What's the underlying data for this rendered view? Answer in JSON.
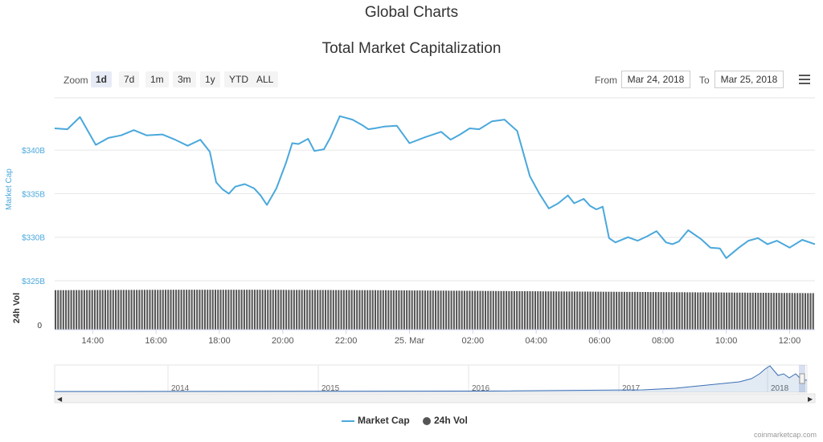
{
  "page": {
    "heading": "Global Charts",
    "chart_title": "Total Market Capitalization",
    "credit": "coinmarketcap.com"
  },
  "toolbar": {
    "zoom_label": "Zoom",
    "zoom_buttons": [
      "1d",
      "7d",
      "1m",
      "3m",
      "1y",
      "YTD",
      "ALL"
    ],
    "active_zoom": "1d",
    "from_label": "From",
    "from_value": "Mar 24, 2018",
    "to_label": "To",
    "to_value": "Mar 25, 2018",
    "menu_icon": "hamburger-menu-icon"
  },
  "legend": {
    "market_cap": "Market Cap",
    "volume": "24h Vol"
  },
  "colors": {
    "market_cap": "#4aa8dc",
    "volume": "#555555",
    "navigator_line": "#3a6fb5",
    "axis_text": "#4aa8dc"
  },
  "chart_data": {
    "type": "line",
    "title": "Total Market Capitalization",
    "x_tick_labels": [
      "14:00",
      "16:00",
      "18:00",
      "20:00",
      "22:00",
      "25. Mar",
      "02:00",
      "04:00",
      "06:00",
      "08:00",
      "10:00",
      "12:00"
    ],
    "x_tick_hours": [
      14,
      16,
      18,
      20,
      22,
      24,
      26,
      28,
      30,
      32,
      34,
      36
    ],
    "x_range_hours": [
      12.8,
      36.8
    ],
    "ylabel": "Market Cap",
    "y_tick_labels": [
      "$325B",
      "$330B",
      "$335B",
      "$340B"
    ],
    "y_ticks": [
      325,
      330,
      335,
      340
    ],
    "ylim": [
      325,
      346
    ],
    "grid": true,
    "series": [
      {
        "name": "Market Cap",
        "x_hours": [
          12.8,
          13.2,
          13.6,
          14.1,
          14.5,
          14.9,
          15.3,
          15.7,
          16.2,
          16.6,
          17.0,
          17.4,
          17.7,
          17.9,
          18.1,
          18.3,
          18.5,
          18.8,
          19.1,
          19.3,
          19.5,
          19.8,
          20.1,
          20.3,
          20.5,
          20.8,
          21.0,
          21.3,
          21.5,
          21.8,
          22.2,
          22.5,
          22.7,
          22.9,
          23.2,
          23.6,
          24.0,
          24.5,
          25.0,
          25.3,
          25.6,
          25.9,
          26.2,
          26.6,
          27.0,
          27.4,
          27.8,
          28.1,
          28.4,
          28.7,
          29.0,
          29.2,
          29.5,
          29.7,
          29.9,
          30.1,
          30.3,
          30.5,
          30.9,
          31.2,
          31.5,
          31.8,
          32.1,
          32.3,
          32.5,
          32.8,
          33.2,
          33.5,
          33.8,
          34.0,
          34.4,
          34.7,
          35.0,
          35.3,
          35.6,
          36.0,
          36.4,
          36.8
        ],
        "values": [
          342.5,
          342.4,
          343.8,
          340.6,
          341.4,
          341.7,
          342.3,
          341.7,
          341.8,
          341.2,
          340.5,
          341.2,
          339.8,
          336.3,
          335.5,
          335.0,
          335.8,
          336.1,
          335.6,
          334.8,
          333.7,
          335.6,
          338.5,
          340.8,
          340.7,
          341.3,
          339.9,
          340.1,
          341.4,
          343.9,
          343.5,
          342.9,
          342.4,
          342.5,
          342.7,
          342.8,
          340.8,
          341.5,
          342.1,
          341.2,
          341.8,
          342.5,
          342.4,
          343.3,
          343.5,
          342.2,
          337.0,
          335.0,
          333.3,
          333.9,
          334.8,
          333.9,
          334.4,
          333.6,
          333.2,
          333.5,
          329.9,
          329.4,
          330.0,
          329.6,
          330.1,
          330.7,
          329.4,
          329.2,
          329.5,
          330.8,
          329.8,
          328.8,
          328.7,
          327.6,
          328.8,
          329.6,
          329.9,
          329.2,
          329.6,
          328.8,
          329.7,
          329.2
        ]
      },
      {
        "name": "24h Vol",
        "type": "column",
        "ylabel": "24h Vol",
        "y_tick_labels": [
          "0"
        ],
        "relative_values": [
          0.93,
          0.935,
          0.94,
          0.94,
          0.935,
          0.93,
          0.92,
          0.91,
          0.9,
          0.89,
          0.88,
          0.87,
          0.86
        ]
      }
    ],
    "navigator": {
      "year_labels": [
        "2014",
        "2015",
        "2016",
        "2017",
        "2018"
      ]
    }
  }
}
